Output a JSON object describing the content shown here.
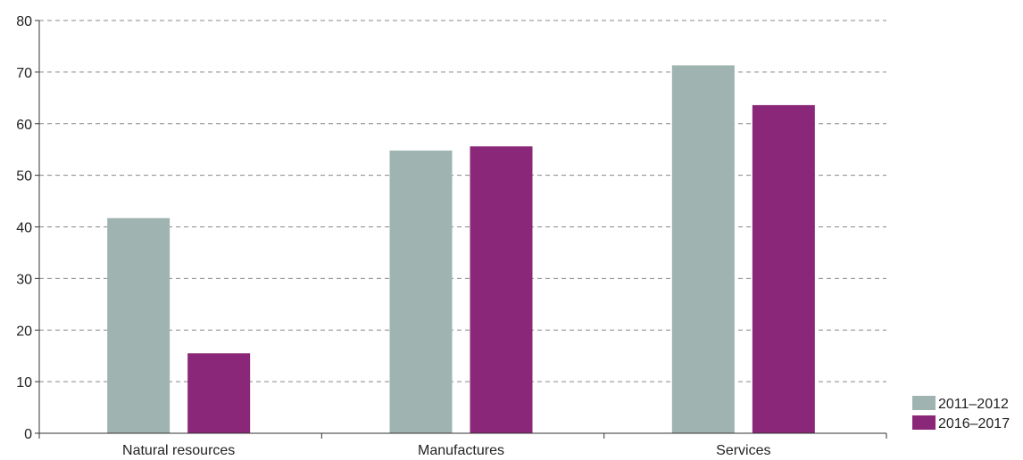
{
  "chart_data": {
    "type": "bar",
    "title": "",
    "xlabel": "",
    "ylabel": "",
    "categories": [
      "Natural resources",
      "Manufactures",
      "Services"
    ],
    "series": [
      {
        "name": "2011–2012",
        "color": "#9fb3b1",
        "values": [
          41.7,
          54.8,
          71.3
        ]
      },
      {
        "name": "2016–2017",
        "color": "#8a2778",
        "values": [
          15.5,
          55.6,
          63.6
        ]
      }
    ],
    "ylim": [
      0,
      80
    ],
    "yticks": [
      0,
      10,
      20,
      30,
      40,
      50,
      60,
      70,
      80
    ],
    "grid": true,
    "legend_position": "bottom-right"
  }
}
